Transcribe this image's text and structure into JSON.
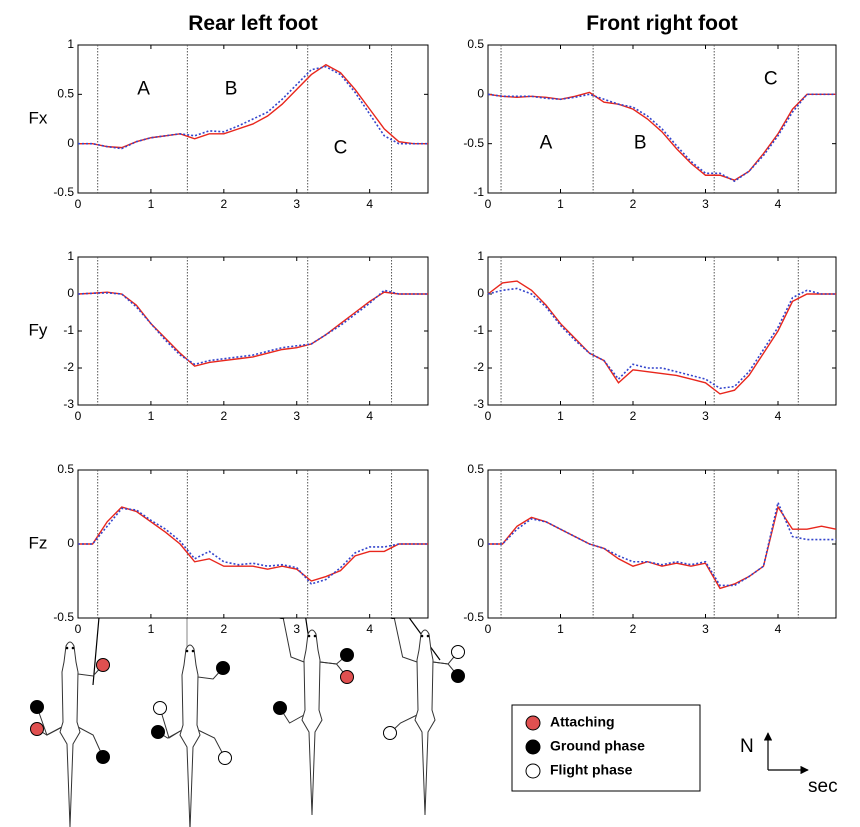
{
  "chart_data": [
    {
      "type": "line",
      "title": "Rear left foot",
      "ylabel": "Fx",
      "x": [
        0,
        0.2,
        0.4,
        0.6,
        0.8,
        1,
        1.2,
        1.4,
        1.6,
        1.8,
        2,
        2.2,
        2.4,
        2.6,
        2.8,
        3,
        3.2,
        3.4,
        3.6,
        3.8,
        4,
        4.2,
        4.4,
        4.6,
        4.8
      ],
      "series": [
        {
          "color": "#e8261c",
          "style": "solid",
          "values": [
            0,
            0,
            -0.03,
            -0.04,
            0.02,
            0.06,
            0.08,
            0.1,
            0.05,
            0.1,
            0.1,
            0.15,
            0.2,
            0.28,
            0.4,
            0.55,
            0.7,
            0.8,
            0.72,
            0.55,
            0.35,
            0.15,
            0.02,
            0,
            0
          ]
        },
        {
          "color": "#3344cc",
          "style": "dotted",
          "values": [
            0,
            0,
            -0.03,
            -0.05,
            0.02,
            0.06,
            0.08,
            0.1,
            0.08,
            0.13,
            0.12,
            0.18,
            0.25,
            0.32,
            0.45,
            0.6,
            0.75,
            0.78,
            0.7,
            0.52,
            0.3,
            0.08,
            0,
            0,
            0
          ]
        }
      ],
      "xlim": [
        0,
        4.8
      ],
      "xticks": [
        0,
        1,
        2,
        3,
        4
      ],
      "ylim": [
        -0.5,
        1
      ],
      "yticks": [
        -0.5,
        0,
        0.5,
        1
      ],
      "vlines": [
        0.27,
        1.5,
        3.15,
        4.3
      ],
      "annotations": [
        {
          "text": "A",
          "x": 0.9,
          "y": 0.55
        },
        {
          "text": "B",
          "x": 2.1,
          "y": 0.55
        },
        {
          "text": "C",
          "x": 3.6,
          "y": -0.05
        }
      ]
    },
    {
      "type": "line",
      "title": "Front right foot",
      "x": [
        0,
        0.2,
        0.4,
        0.6,
        0.8,
        1,
        1.2,
        1.4,
        1.6,
        1.8,
        2,
        2.2,
        2.4,
        2.6,
        2.8,
        3,
        3.2,
        3.4,
        3.6,
        3.8,
        4,
        4.2,
        4.4,
        4.6,
        4.8
      ],
      "series": [
        {
          "color": "#e8261c",
          "style": "solid",
          "values": [
            0,
            -0.02,
            -0.03,
            -0.02,
            -0.03,
            -0.05,
            -0.02,
            0.02,
            -0.08,
            -0.1,
            -0.15,
            -0.25,
            -0.38,
            -0.55,
            -0.7,
            -0.82,
            -0.82,
            -0.87,
            -0.78,
            -0.6,
            -0.4,
            -0.15,
            0,
            0,
            0
          ]
        },
        {
          "color": "#3344cc",
          "style": "dotted",
          "values": [
            0,
            -0.02,
            -0.02,
            -0.02,
            -0.04,
            -0.05,
            -0.03,
            0,
            -0.05,
            -0.1,
            -0.13,
            -0.22,
            -0.35,
            -0.52,
            -0.68,
            -0.8,
            -0.8,
            -0.88,
            -0.78,
            -0.62,
            -0.42,
            -0.18,
            0,
            0,
            0
          ]
        }
      ],
      "xlim": [
        0,
        4.8
      ],
      "xticks": [
        0,
        1,
        2,
        3,
        4
      ],
      "ylim": [
        -1,
        0.5
      ],
      "yticks": [
        -1,
        -0.5,
        0,
        0.5
      ],
      "vlines": [
        0.18,
        1.45,
        3.12,
        4.28
      ],
      "annotations": [
        {
          "text": "A",
          "x": 0.8,
          "y": -0.5
        },
        {
          "text": "B",
          "x": 2.1,
          "y": -0.5
        },
        {
          "text": "C",
          "x": 3.9,
          "y": 0.15
        }
      ]
    },
    {
      "type": "line",
      "ylabel": "Fy",
      "x": [
        0,
        0.2,
        0.4,
        0.6,
        0.8,
        1,
        1.2,
        1.4,
        1.6,
        1.8,
        2,
        2.2,
        2.4,
        2.6,
        2.8,
        3,
        3.2,
        3.4,
        3.6,
        3.8,
        4,
        4.2,
        4.4,
        4.6,
        4.8
      ],
      "series": [
        {
          "color": "#e8261c",
          "style": "solid",
          "values": [
            0,
            0.02,
            0.05,
            0,
            -0.3,
            -0.8,
            -1.2,
            -1.6,
            -1.95,
            -1.85,
            -1.8,
            -1.75,
            -1.7,
            -1.6,
            -1.5,
            -1.45,
            -1.35,
            -1.1,
            -0.8,
            -0.5,
            -0.2,
            0.05,
            0,
            0,
            0
          ]
        },
        {
          "color": "#3344cc",
          "style": "dotted",
          "values": [
            0,
            0.02,
            0.03,
            0,
            -0.35,
            -0.8,
            -1.25,
            -1.65,
            -1.9,
            -1.8,
            -1.75,
            -1.7,
            -1.65,
            -1.55,
            -1.45,
            -1.4,
            -1.35,
            -1.1,
            -0.85,
            -0.55,
            -0.25,
            0.1,
            0,
            0,
            0
          ]
        }
      ],
      "xlim": [
        0,
        4.8
      ],
      "xticks": [
        0,
        1,
        2,
        3,
        4
      ],
      "ylim": [
        -3,
        1
      ],
      "yticks": [
        -3,
        -2,
        -1,
        0,
        1
      ],
      "vlines": [
        0.27,
        1.5,
        3.15,
        4.3
      ]
    },
    {
      "type": "line",
      "x": [
        0,
        0.2,
        0.4,
        0.6,
        0.8,
        1,
        1.2,
        1.4,
        1.6,
        1.8,
        2,
        2.2,
        2.4,
        2.6,
        2.8,
        3,
        3.2,
        3.4,
        3.6,
        3.8,
        4,
        4.2,
        4.4,
        4.6,
        4.8
      ],
      "series": [
        {
          "color": "#e8261c",
          "style": "solid",
          "values": [
            0,
            0.3,
            0.35,
            0.1,
            -0.3,
            -0.8,
            -1.2,
            -1.6,
            -1.8,
            -2.4,
            -2.05,
            -2.1,
            -2.15,
            -2.2,
            -2.3,
            -2.4,
            -2.7,
            -2.6,
            -2.2,
            -1.6,
            -1,
            -0.2,
            0,
            0,
            0
          ]
        },
        {
          "color": "#3344cc",
          "style": "dotted",
          "values": [
            0,
            0.1,
            0.15,
            0,
            -0.35,
            -0.85,
            -1.25,
            -1.6,
            -1.8,
            -2.3,
            -1.9,
            -2,
            -2,
            -2.1,
            -2.2,
            -2.3,
            -2.55,
            -2.5,
            -2.1,
            -1.5,
            -0.9,
            -0.1,
            0.1,
            0,
            0
          ]
        }
      ],
      "xlim": [
        0,
        4.8
      ],
      "xticks": [
        0,
        1,
        2,
        3,
        4
      ],
      "ylim": [
        -3,
        1
      ],
      "yticks": [
        -3,
        -2,
        -1,
        0,
        1
      ],
      "vlines": [
        0.18,
        1.45,
        3.12,
        4.28
      ]
    },
    {
      "type": "line",
      "ylabel": "Fz",
      "x": [
        0,
        0.2,
        0.4,
        0.6,
        0.8,
        1,
        1.2,
        1.4,
        1.6,
        1.8,
        2,
        2.2,
        2.4,
        2.6,
        2.8,
        3,
        3.2,
        3.4,
        3.6,
        3.8,
        4,
        4.2,
        4.4,
        4.6,
        4.8
      ],
      "series": [
        {
          "color": "#e8261c",
          "style": "solid",
          "values": [
            0,
            0,
            0.15,
            0.25,
            0.22,
            0.15,
            0.08,
            0,
            -0.12,
            -0.1,
            -0.15,
            -0.15,
            -0.15,
            -0.17,
            -0.15,
            -0.17,
            -0.25,
            -0.22,
            -0.18,
            -0.08,
            -0.05,
            -0.05,
            0,
            0,
            0
          ]
        },
        {
          "color": "#3344cc",
          "style": "dotted",
          "values": [
            0,
            0,
            0.12,
            0.24,
            0.23,
            0.16,
            0.1,
            0.02,
            -0.1,
            -0.05,
            -0.12,
            -0.14,
            -0.13,
            -0.15,
            -0.14,
            -0.16,
            -0.27,
            -0.24,
            -0.16,
            -0.06,
            -0.02,
            -0.02,
            0,
            0,
            0
          ]
        }
      ],
      "xlim": [
        0,
        4.8
      ],
      "xticks": [
        0,
        1,
        2,
        3,
        4
      ],
      "ylim": [
        -0.5,
        0.5
      ],
      "yticks": [
        -0.5,
        0,
        0.5
      ],
      "vlines": [
        0.27,
        1.5,
        3.15,
        4.3
      ]
    },
    {
      "type": "line",
      "x": [
        0,
        0.2,
        0.4,
        0.6,
        0.8,
        1,
        1.2,
        1.4,
        1.6,
        1.8,
        2,
        2.2,
        2.4,
        2.6,
        2.8,
        3,
        3.2,
        3.4,
        3.6,
        3.8,
        4,
        4.2,
        4.4,
        4.6,
        4.8
      ],
      "series": [
        {
          "color": "#e8261c",
          "style": "solid",
          "values": [
            0,
            0,
            0.12,
            0.18,
            0.15,
            0.1,
            0.05,
            0,
            -0.03,
            -0.1,
            -0.15,
            -0.12,
            -0.15,
            -0.13,
            -0.15,
            -0.13,
            -0.3,
            -0.27,
            -0.22,
            -0.15,
            0.25,
            0.1,
            0.1,
            0.12,
            0.1
          ]
        },
        {
          "color": "#3344cc",
          "style": "dotted",
          "values": [
            0,
            0,
            0.1,
            0.17,
            0.15,
            0.1,
            0.05,
            0,
            -0.03,
            -0.08,
            -0.12,
            -0.12,
            -0.14,
            -0.12,
            -0.14,
            -0.12,
            -0.28,
            -0.28,
            -0.22,
            -0.15,
            0.28,
            0.05,
            0.03,
            0.03,
            0.03
          ]
        }
      ],
      "xlim": [
        0,
        4.8
      ],
      "xticks": [
        0,
        1,
        2,
        3,
        4
      ],
      "ylim": [
        -0.5,
        0.5
      ],
      "yticks": [
        -0.5,
        0,
        0.5
      ],
      "vlines": [
        0.18,
        1.45,
        3.12,
        4.28
      ]
    }
  ],
  "legend": [
    {
      "label": "Attaching",
      "color": "#e05050"
    },
    {
      "label": "Ground phase",
      "color": "#000000"
    },
    {
      "label": "Flight phase",
      "color": "#ffffff"
    }
  ],
  "axes_key": {
    "y": "N",
    "x": "sec"
  }
}
